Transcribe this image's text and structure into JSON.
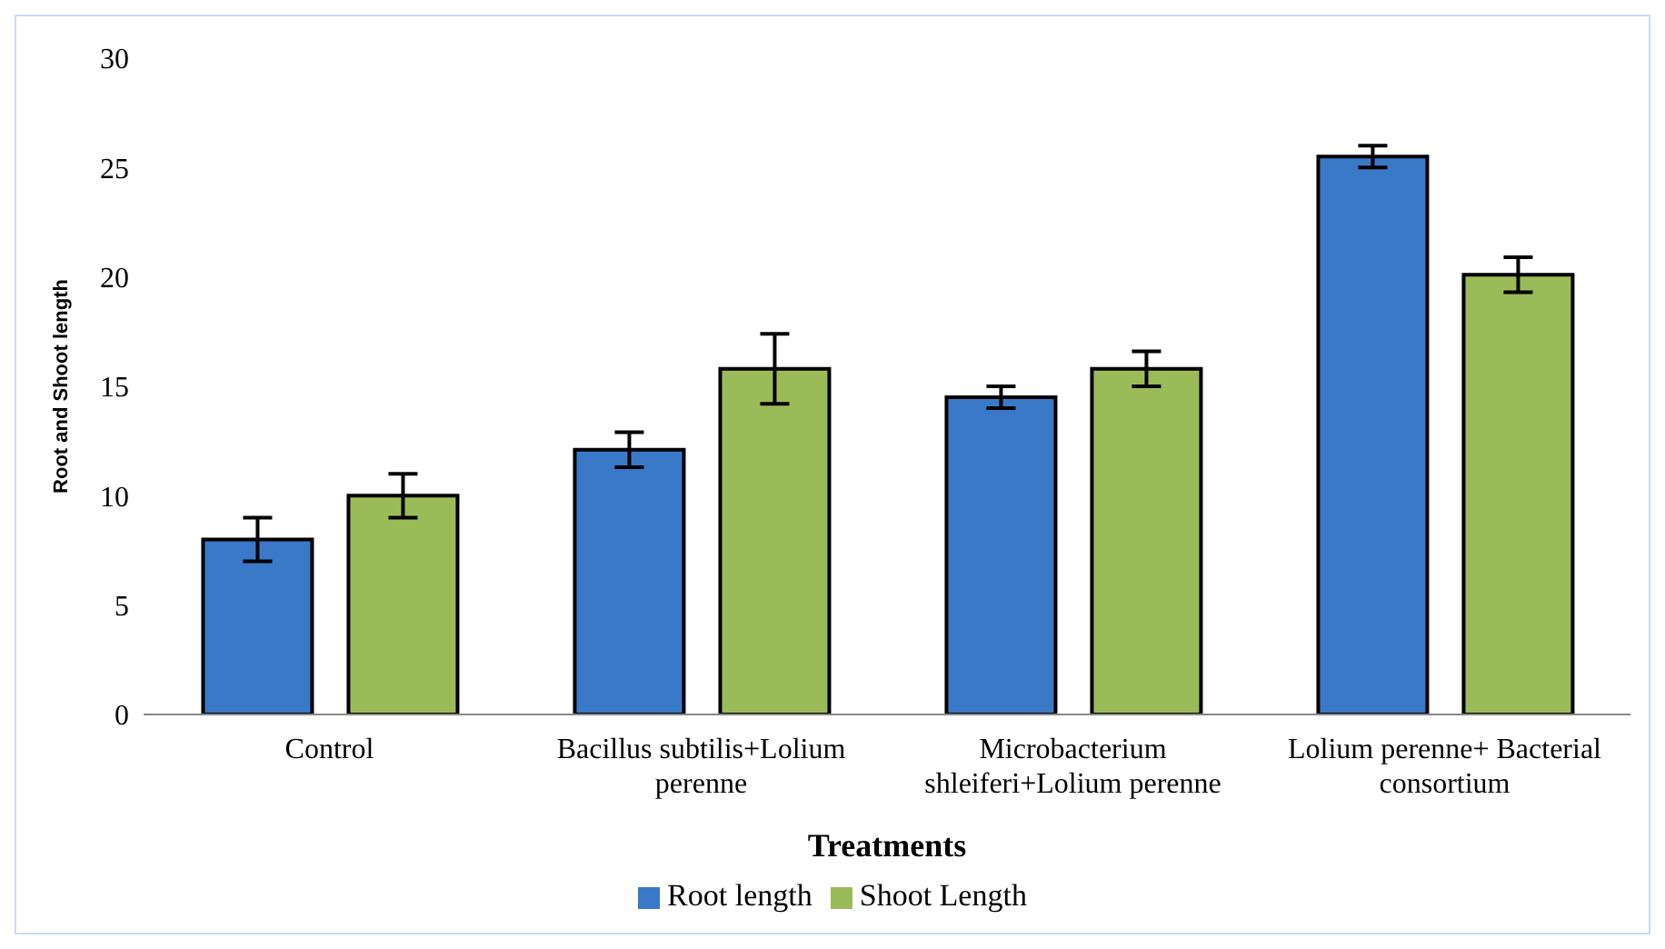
{
  "chart_data": {
    "type": "bar",
    "xlabel": "Treatments",
    "ylabel": "Root and Shoot length",
    "categories": [
      "Control",
      "Bacillus subtilis+Lolium perenne",
      "Microbacterium shleiferi+Lolium perenne",
      "Lolium perenne+ Bacterial consortium"
    ],
    "series": [
      {
        "name": "Root length",
        "color": "#3a78c8",
        "values": [
          8.0,
          12.1,
          14.5,
          25.5
        ],
        "errors": [
          1.0,
          0.8,
          0.5,
          0.5
        ]
      },
      {
        "name": "Shoot Length",
        "color": "#9bbb59",
        "values": [
          10.0,
          15.8,
          15.8,
          20.1
        ],
        "errors": [
          1.0,
          1.6,
          0.8,
          0.8
        ]
      }
    ],
    "ylim": [
      0,
      30
    ],
    "yticks": [
      0,
      5,
      10,
      15,
      20,
      25,
      30
    ],
    "grid": false,
    "legend": "bottom"
  }
}
